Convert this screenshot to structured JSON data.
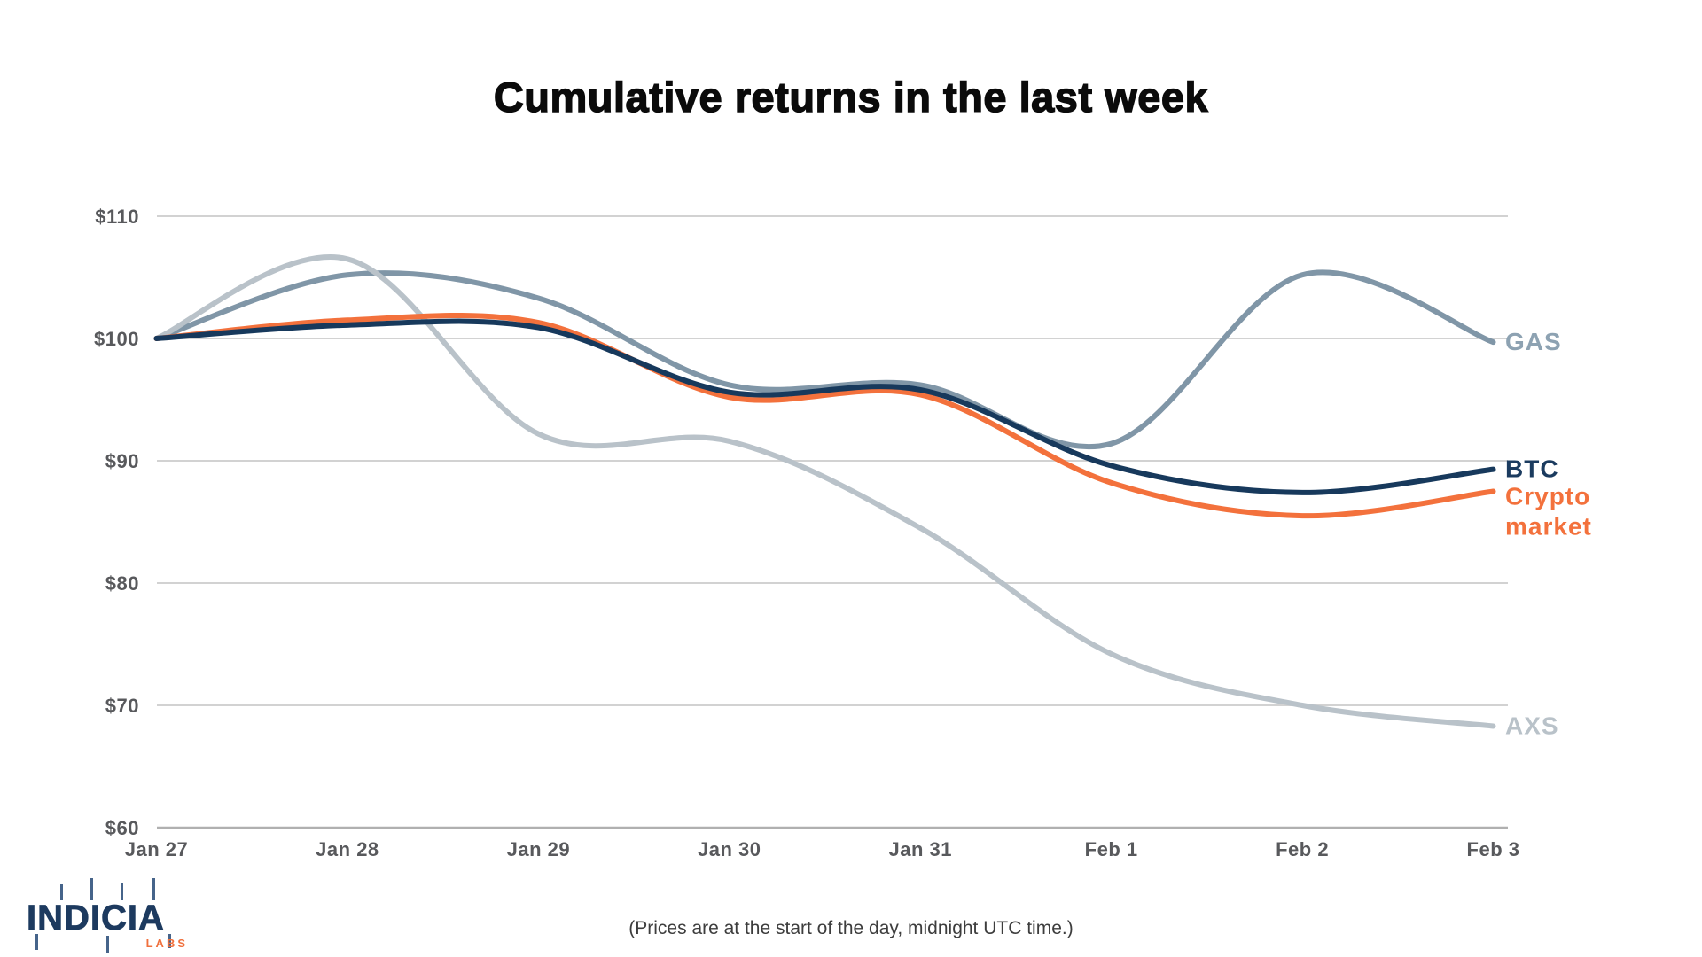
{
  "header": {
    "title": "Cumulative returns in the last week"
  },
  "footer": {
    "note": "(Prices are at the start of the day, midnight UTC time.)"
  },
  "logo": {
    "name": "INDICIA",
    "sub": "LABS"
  },
  "chart_data": {
    "type": "line",
    "title": "Cumulative returns in the last week",
    "xlabel": "",
    "ylabel": "",
    "x_labels": [
      "Jan 27",
      "Jan 28",
      "Jan 29",
      "Jan 30",
      "Jan 31",
      "Feb 1",
      "Feb 2",
      "Feb 3"
    ],
    "y_tick_labels": [
      "$110",
      "$100",
      "$90",
      "$80",
      "$70",
      "$60"
    ],
    "y_tick_values": [
      110,
      100,
      90,
      80,
      70,
      60
    ],
    "ylim": [
      60,
      110
    ],
    "grid": "horizontal",
    "legend_position": "right-end-labels",
    "colors": {
      "grid": "#d2d2d2",
      "baseline": "#b0b0b0",
      "tick_text": "#58595c",
      "accent_orange": "#f3713c",
      "accent_navy": "#17395c"
    },
    "series": [
      {
        "name": "GAS",
        "color": "#8096a7",
        "label_color": "#8da2b2",
        "label_lines": [
          "GAS"
        ],
        "values": [
          100,
          105.2,
          103.3,
          96.2,
          96.2,
          91.4,
          105.2,
          99.7
        ]
      },
      {
        "name": "AXS",
        "color": "#b9c2c9",
        "label_color": "#b9c2c9",
        "label_lines": [
          "AXS"
        ],
        "values": [
          100,
          106.5,
          92.2,
          91.6,
          84.5,
          74.2,
          70,
          68.3
        ]
      },
      {
        "name": "Crypto market",
        "color": "#f3713c",
        "label_color": "#f3713c",
        "label_lines": [
          "Crypto",
          "market"
        ],
        "values": [
          100,
          101.5,
          101.3,
          95.2,
          95.4,
          88.2,
          85.5,
          87.5
        ]
      },
      {
        "name": "BTC",
        "color": "#17395c",
        "label_color": "#1b3b5f",
        "label_lines": [
          "BTC"
        ],
        "values": [
          100,
          101.1,
          100.9,
          95.6,
          95.8,
          89.6,
          87.4,
          89.3
        ]
      }
    ]
  }
}
